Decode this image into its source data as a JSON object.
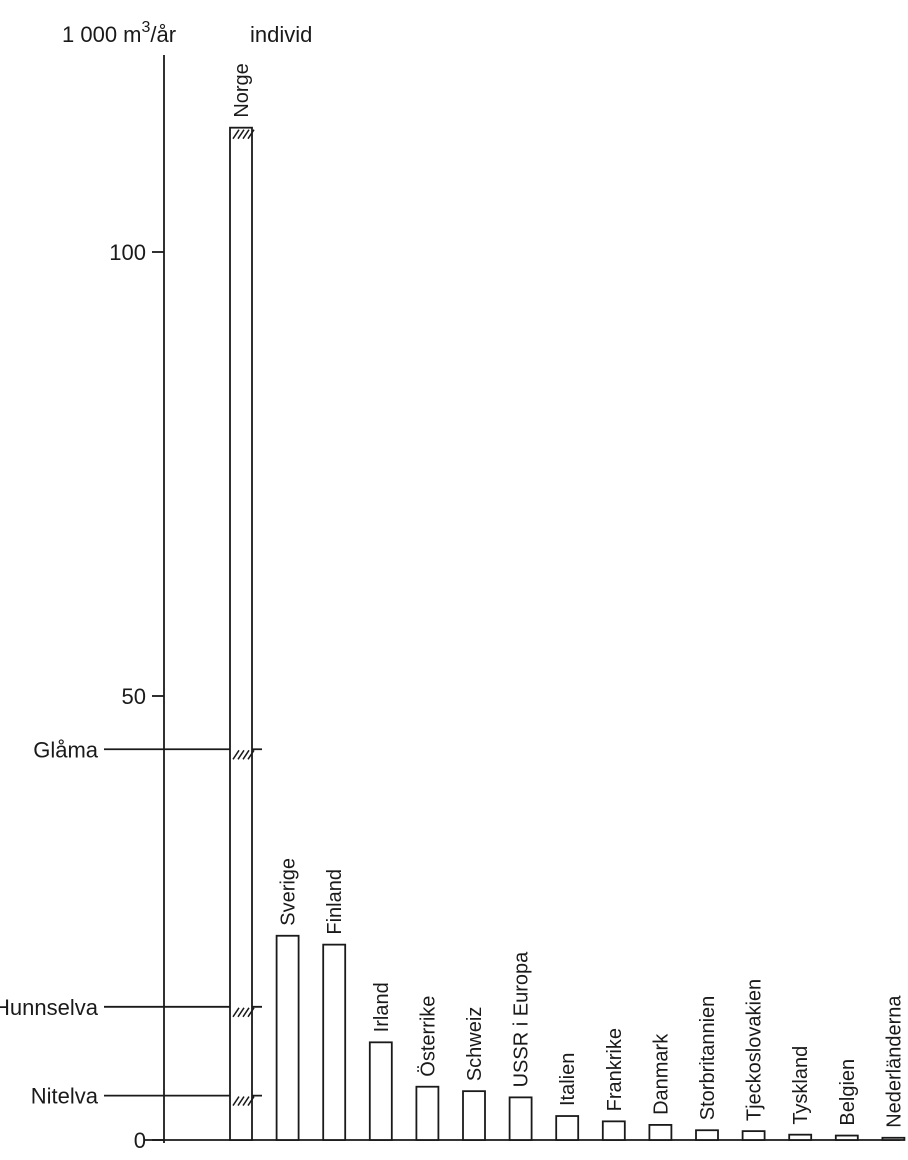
{
  "chart_data": {
    "type": "bar",
    "title": "",
    "ylabel": "1 000 m³/år",
    "ylabel_base": "1 000 m",
    "ylabel_sup": "3",
    "ylabel_tail": "/år",
    "ylabel_per": "individ",
    "xlabel": "",
    "ylim": [
      0,
      120
    ],
    "yticks": [
      0,
      50,
      100
    ],
    "grid": false,
    "legend": "none",
    "categories": [
      "Norge",
      "Sverige",
      "Finland",
      "Irland",
      "Österrike",
      "Schweiz",
      "USSR i Europa",
      "Italien",
      "Frankrike",
      "Danmark",
      "Storbritannien",
      "Tjeckoslovakien",
      "Tyskland",
      "Belgien",
      "Nederländerna"
    ],
    "values": [
      114,
      23,
      22,
      11,
      6,
      5.5,
      4.8,
      2.7,
      2.1,
      1.7,
      1.1,
      1.0,
      0.6,
      0.5,
      0.25
    ],
    "reference_lines": [
      {
        "label": "Glåma",
        "value": 44
      },
      {
        "label": "Hunnselva",
        "value": 15
      },
      {
        "label": "Nitelva",
        "value": 5
      }
    ]
  }
}
